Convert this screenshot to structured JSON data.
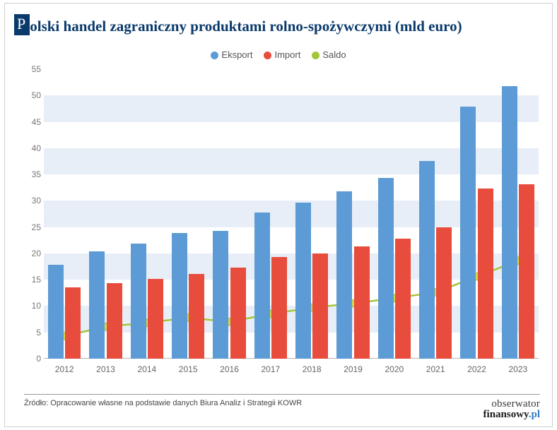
{
  "title": {
    "boxed_letter": "P",
    "rest": "olski handel zagraniczny produktami rolno-spożywczymi (mld euro)",
    "box_bg": "#0a3a6b",
    "box_fg": "#ffffff",
    "text_color": "#0a3a6b",
    "fontsize": 21
  },
  "legend": {
    "items": [
      {
        "label": "Eksport",
        "color": "#5c9bd5"
      },
      {
        "label": "Import",
        "color": "#e74c3c"
      },
      {
        "label": "Saldo",
        "color": "#a4c639"
      }
    ],
    "fontsize": 13
  },
  "chart": {
    "type": "grouped-bar-with-line",
    "categories": [
      "2012",
      "2013",
      "2014",
      "2015",
      "2016",
      "2017",
      "2018",
      "2019",
      "2020",
      "2021",
      "2022",
      "2023"
    ],
    "series": {
      "eksport": {
        "values": [
          17.9,
          20.4,
          21.9,
          23.9,
          24.3,
          27.8,
          29.7,
          31.8,
          34.3,
          37.6,
          47.9,
          51.8
        ],
        "color": "#5c9bd5",
        "bar_width": 0.38
      },
      "import": {
        "values": [
          13.6,
          14.3,
          15.1,
          16.1,
          17.3,
          19.3,
          20.0,
          21.3,
          22.8,
          25.0,
          32.3,
          33.2
        ],
        "color": "#e74c3c",
        "bar_width": 0.38
      },
      "saldo": {
        "values": [
          4.3,
          6.1,
          6.8,
          7.8,
          7.0,
          8.5,
          9.7,
          10.5,
          11.5,
          12.6,
          15.6,
          18.6
        ],
        "color": "#a4c639",
        "line_width": 2.5,
        "marker": "diamond",
        "marker_size": 8,
        "marker_color": "#d4d84a"
      }
    },
    "ylim": [
      0,
      55
    ],
    "ytick_step": 5,
    "y_fontsize": 12,
    "x_fontsize": 12,
    "band_color": "#e8eef7",
    "background": "#ffffff",
    "axis_color": "#b8b8b8",
    "label_color": "#777777"
  },
  "footer": {
    "source_prefix": "Źródło: ",
    "source": "Opracowanie własne na podstawie danych Biura Analiz i Strategii KOWR",
    "brand_top": "obserwator",
    "brand_bottom": "finansowy",
    "brand_suffix": ".pl",
    "fontsize": 11
  }
}
